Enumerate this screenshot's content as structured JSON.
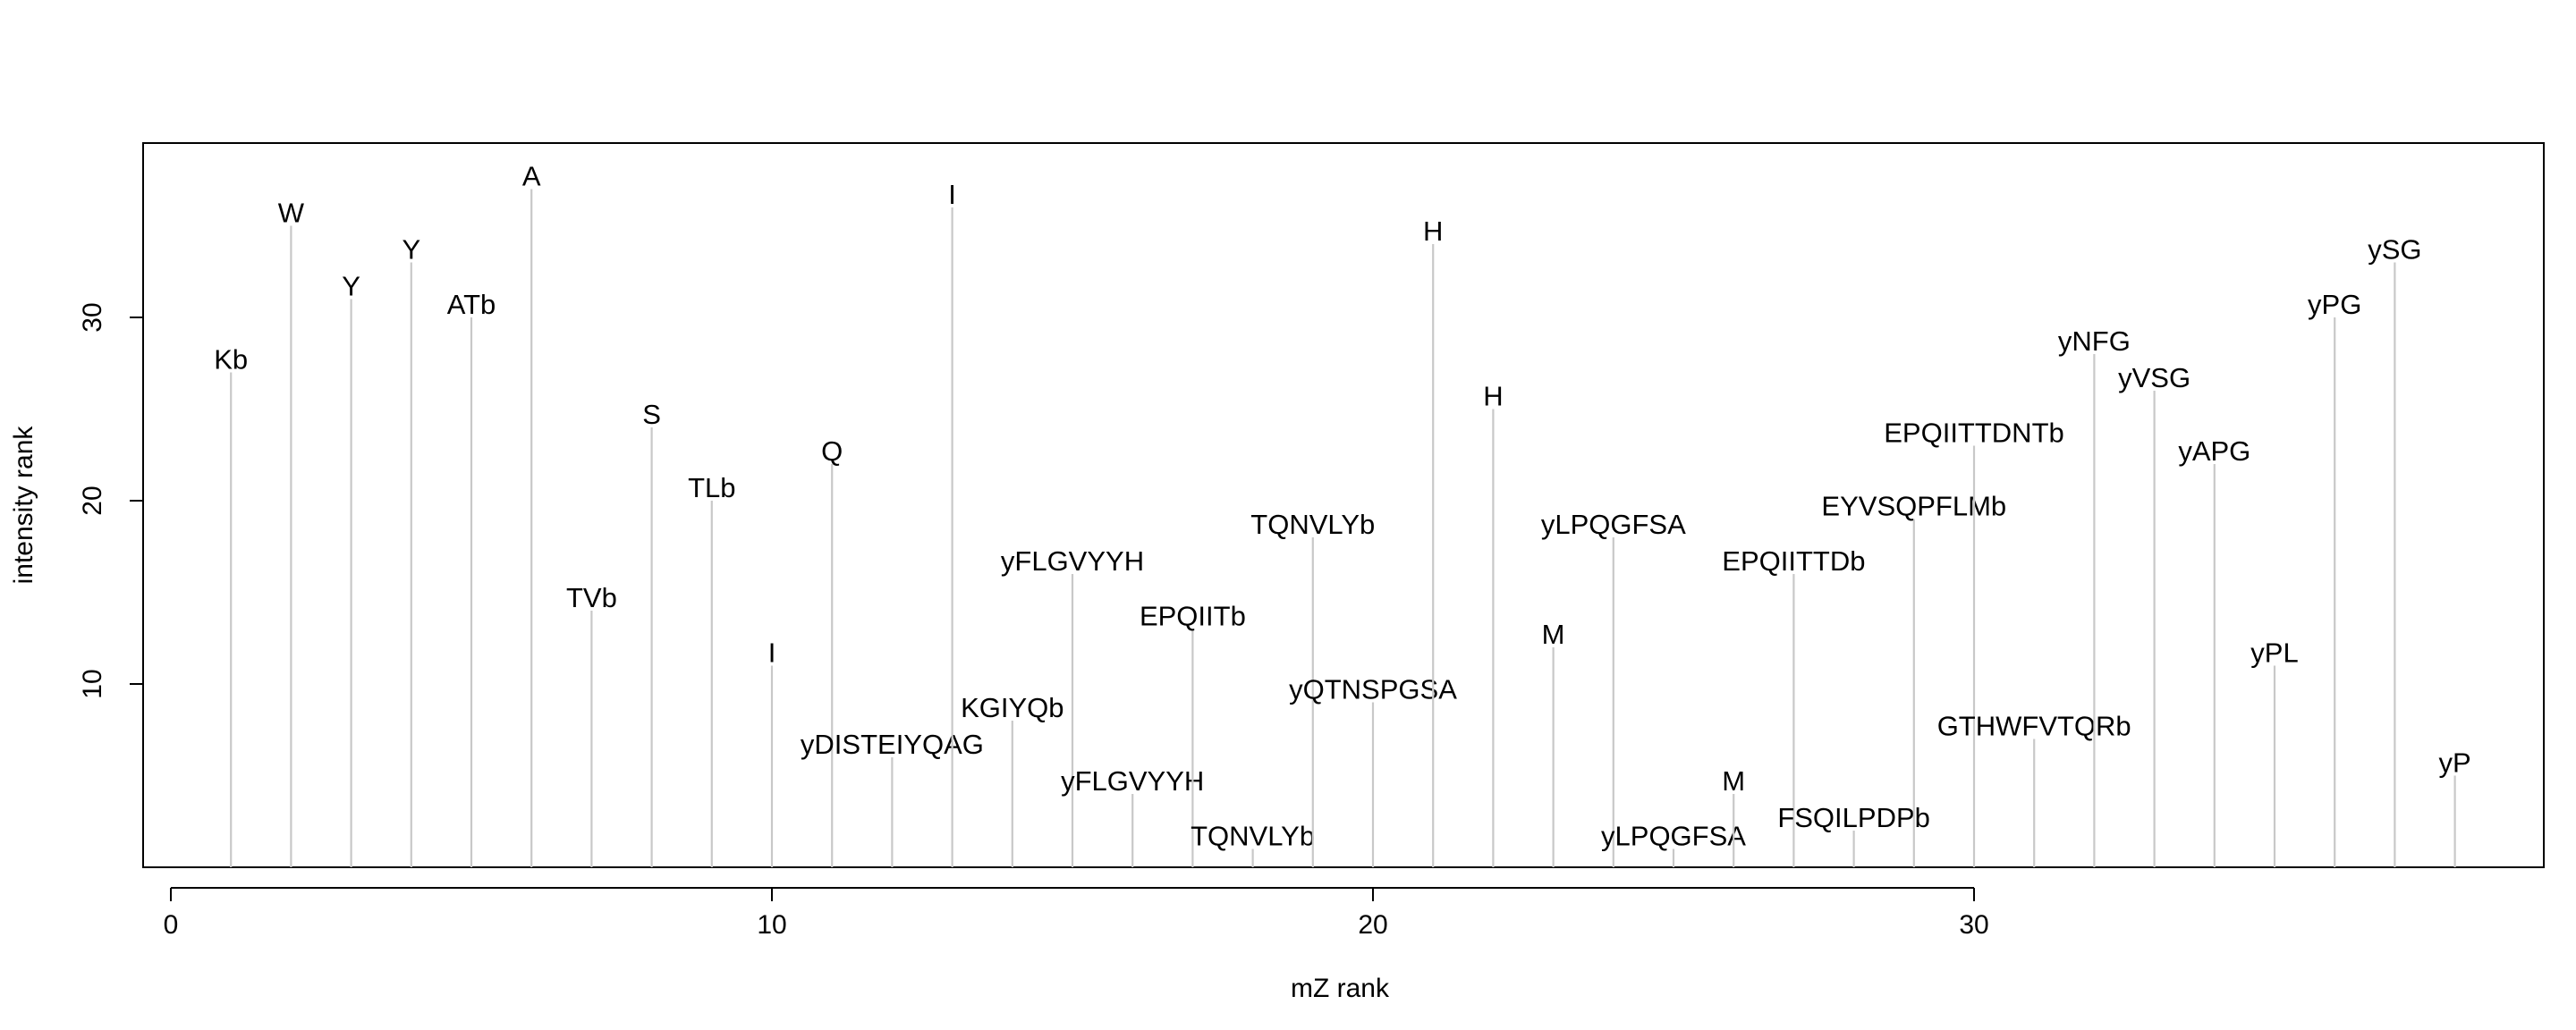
{
  "chart_data": {
    "type": "bar",
    "xlabel": "mZ rank",
    "ylabel": "intensity rank",
    "xlim": [
      -0.5,
      39
    ],
    "ylim": [
      0,
      39.5
    ],
    "x_ticks": [
      0,
      10,
      20,
      30
    ],
    "y_ticks": [
      10,
      20,
      30
    ],
    "grid": false,
    "peaks": [
      {
        "x": 1,
        "y": 27,
        "label": "Kb"
      },
      {
        "x": 2,
        "y": 35,
        "label": "W"
      },
      {
        "x": 3,
        "y": 31,
        "label": "Y"
      },
      {
        "x": 4,
        "y": 33,
        "label": "Y"
      },
      {
        "x": 5,
        "y": 30,
        "label": "ATb"
      },
      {
        "x": 6,
        "y": 37,
        "label": "A"
      },
      {
        "x": 7,
        "y": 14,
        "label": "TVb"
      },
      {
        "x": 8,
        "y": 24,
        "label": "S"
      },
      {
        "x": 9,
        "y": 20,
        "label": "TLb"
      },
      {
        "x": 10,
        "y": 11,
        "label": "I"
      },
      {
        "x": 11,
        "y": 22,
        "label": "Q"
      },
      {
        "x": 12,
        "y": 6,
        "label": "yDISTEIYQAG"
      },
      {
        "x": 13,
        "y": 36,
        "label": "I"
      },
      {
        "x": 14,
        "y": 8,
        "label": "KGIYQb"
      },
      {
        "x": 15,
        "y": 16,
        "label": "yFLGVYYH"
      },
      {
        "x": 16,
        "y": 4,
        "label": "yFLGVYYH"
      },
      {
        "x": 17,
        "y": 13,
        "label": "EPQIITb"
      },
      {
        "x": 18,
        "y": 1,
        "label": "TQNVLYb"
      },
      {
        "x": 19,
        "y": 18,
        "label": "TQNVLYb"
      },
      {
        "x": 20,
        "y": 9,
        "label": "yQTNSPGSA"
      },
      {
        "x": 21,
        "y": 34,
        "label": "H"
      },
      {
        "x": 22,
        "y": 25,
        "label": "H"
      },
      {
        "x": 23,
        "y": 12,
        "label": "M"
      },
      {
        "x": 24,
        "y": 18,
        "label": "yLPQGFSA"
      },
      {
        "x": 25,
        "y": 1,
        "label": "yLPQGFSA"
      },
      {
        "x": 26,
        "y": 4,
        "label": "M"
      },
      {
        "x": 27,
        "y": 16,
        "label": "EPQIITTDb"
      },
      {
        "x": 28,
        "y": 2,
        "label": "FSQILPDPb"
      },
      {
        "x": 29,
        "y": 19,
        "label": "EYVSQPFLMb"
      },
      {
        "x": 30,
        "y": 23,
        "label": "EPQIITTDNTb"
      },
      {
        "x": 31,
        "y": 7,
        "label": "GTHWFVTQRb"
      },
      {
        "x": 32,
        "y": 28,
        "label": "yNFG"
      },
      {
        "x": 33,
        "y": 26,
        "label": "yVSG"
      },
      {
        "x": 34,
        "y": 22,
        "label": "yAPG"
      },
      {
        "x": 35,
        "y": 11,
        "label": "yPL"
      },
      {
        "x": 36,
        "y": 30,
        "label": "yPG"
      },
      {
        "x": 37,
        "y": 33,
        "label": "ySG"
      },
      {
        "x": 38,
        "y": 5,
        "label": "yP"
      }
    ]
  }
}
